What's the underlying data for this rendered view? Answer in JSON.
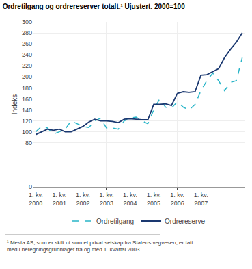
{
  "chart_data": {
    "type": "line",
    "title": "Ordretilgang og ordrereserver totalt.¹ Ujustert. 2000=100",
    "ylabel": "Indeks",
    "footnote": "¹ Mesta AS, som er skilt ut som et privat selskap fra Statens vegvesen, er tatt\nmed i beregningsgrunnlaget fra og med 1. kvartal 2003.",
    "categories": [
      "1. kv.\n2000",
      null,
      null,
      null,
      "1. kv.\n2001",
      null,
      null,
      null,
      "1. kv.\n2002",
      null,
      null,
      null,
      "1. kv.\n2003",
      null,
      null,
      null,
      "1. kv.\n2004",
      null,
      null,
      null,
      "1. kv.\n2005",
      null,
      null,
      null,
      "1. kv.\n2006",
      null,
      null,
      null,
      "1. kv.\n2007",
      null,
      null,
      null,
      null,
      null,
      null,
      null
    ],
    "series": [
      {
        "name": "Ordretilgang",
        "color": "#29b5c8",
        "line_style": "dashed",
        "values": [
          100,
          110,
          107,
          96,
          100,
          105,
          120,
          115,
          110,
          108,
          120,
          125,
          107,
          107,
          105,
          120,
          125,
          127,
          120,
          115,
          140,
          160,
          145,
          143,
          155,
          145,
          140,
          150,
          175,
          193,
          207,
          193,
          175,
          190,
          193,
          235
        ]
      },
      {
        "name": "Ordrereserve",
        "color": "#1a3870",
        "line_style": "solid",
        "values": [
          95,
          100,
          105,
          103,
          105,
          100,
          100,
          105,
          110,
          118,
          123,
          120,
          120,
          119,
          117,
          123,
          124,
          123,
          122,
          122,
          150,
          150,
          151,
          148,
          170,
          173,
          172,
          173,
          203,
          204,
          210,
          215,
          235,
          250,
          263,
          280
        ]
      }
    ],
    "ylim": [
      0,
      300
    ],
    "yticks": [
      0,
      80,
      100,
      120,
      140,
      160,
      180,
      200,
      220,
      240,
      260,
      280,
      300
    ],
    "grid": true,
    "legend": "bottom"
  }
}
